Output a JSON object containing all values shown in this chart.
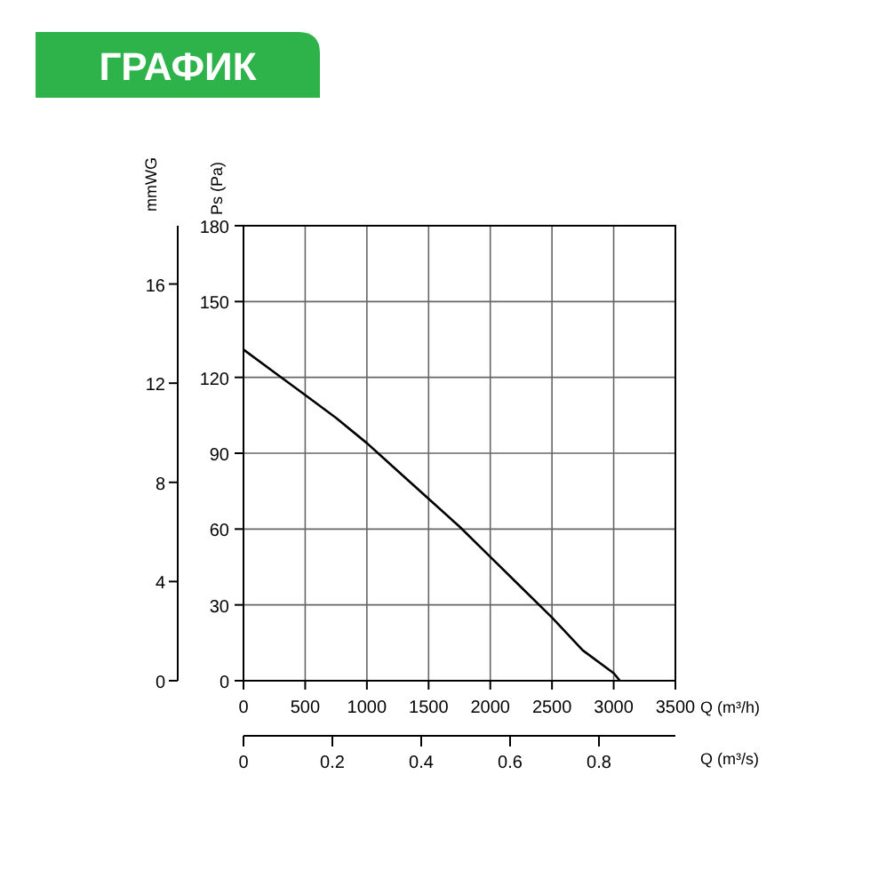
{
  "chart_data": {
    "type": "line",
    "title": "ГРАФИК",
    "xlabel": "Q (m³/h)",
    "ylabel": "Ps (Pa)",
    "y2label": "mmWG",
    "x2label": "Q (m³/s)",
    "x": [
      0,
      250,
      500,
      750,
      1000,
      1250,
      1500,
      1750,
      2000,
      2250,
      2500,
      2750,
      3000,
      3050
    ],
    "series": [
      {
        "color": "#000000",
        "values": [
          131,
          122,
          113,
          104,
          94,
          83,
          72,
          61,
          49,
          37,
          25,
          12,
          3,
          0
        ]
      }
    ],
    "xlim": [
      0,
      3500
    ],
    "xticks": [
      0,
      500,
      1000,
      1500,
      2000,
      2500,
      3000,
      3500
    ],
    "ylim": [
      0,
      180
    ],
    "yticks": [
      0,
      30,
      60,
      90,
      120,
      150,
      180
    ],
    "y2lim": [
      0,
      18.35
    ],
    "y2ticks": [
      0,
      4,
      8,
      12,
      16
    ],
    "x2lim": [
      0,
      0.972
    ],
    "x2ticks": [
      0,
      0.2,
      0.4,
      0.6,
      0.8
    ],
    "grid": true,
    "marker": "none",
    "line_style": "solid"
  }
}
